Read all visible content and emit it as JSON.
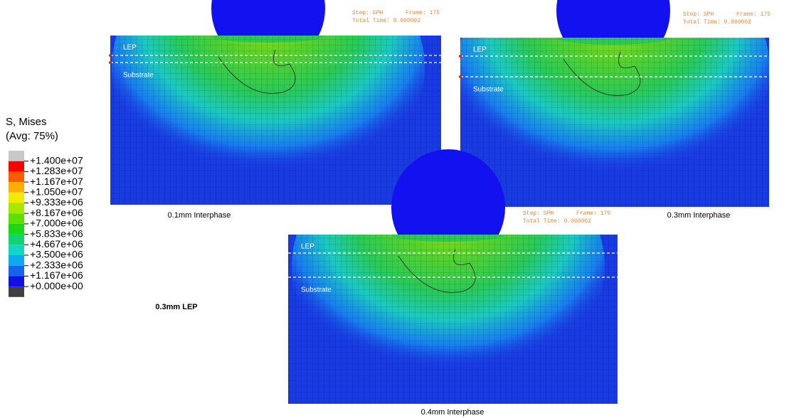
{
  "legend": {
    "title": "S, Mises",
    "subtitle": "(Avg: 75%)",
    "labels": [
      "+1.400e+07",
      "+1.283e+07",
      "+1.167e+07",
      "+1.050e+07",
      "+9.333e+06",
      "+8.167e+06",
      "+7.000e+06",
      "+5.833e+06",
      "+4.667e+06",
      "+3.500e+06",
      "+2.333e+06",
      "+1.167e+06",
      "+0.000e+00"
    ],
    "colors": [
      "#c8c8c8",
      "#ff0000",
      "#ff5a00",
      "#ffae00",
      "#f2ea00",
      "#a8e800",
      "#5ee000",
      "#18d818",
      "#14d26e",
      "#12d6c4",
      "#10a8f0",
      "#1464f0",
      "#1010e8",
      "#404040"
    ]
  },
  "panels": [
    {
      "layer_top": "LEP",
      "layer_bottom": "Substrate",
      "step": "Step: SPH",
      "frame": "Frame: 175",
      "time": "Total Time: 0.000002",
      "caption": "0.1mm Interphase"
    },
    {
      "layer_top": "LEP",
      "layer_bottom": "Substrate",
      "step": "Step: SPH",
      "frame": "Frame: 175",
      "time": "Total Time: 0.000002",
      "caption": "0.3mm Interphase"
    },
    {
      "layer_top": "LEP",
      "layer_bottom": "Substrate",
      "step": "Step: SPH",
      "frame": "Frame: 175",
      "time": "Total Time: 0.000002",
      "caption": "0.4mm Interphase"
    }
  ],
  "group_label": "0.3mm LEP"
}
